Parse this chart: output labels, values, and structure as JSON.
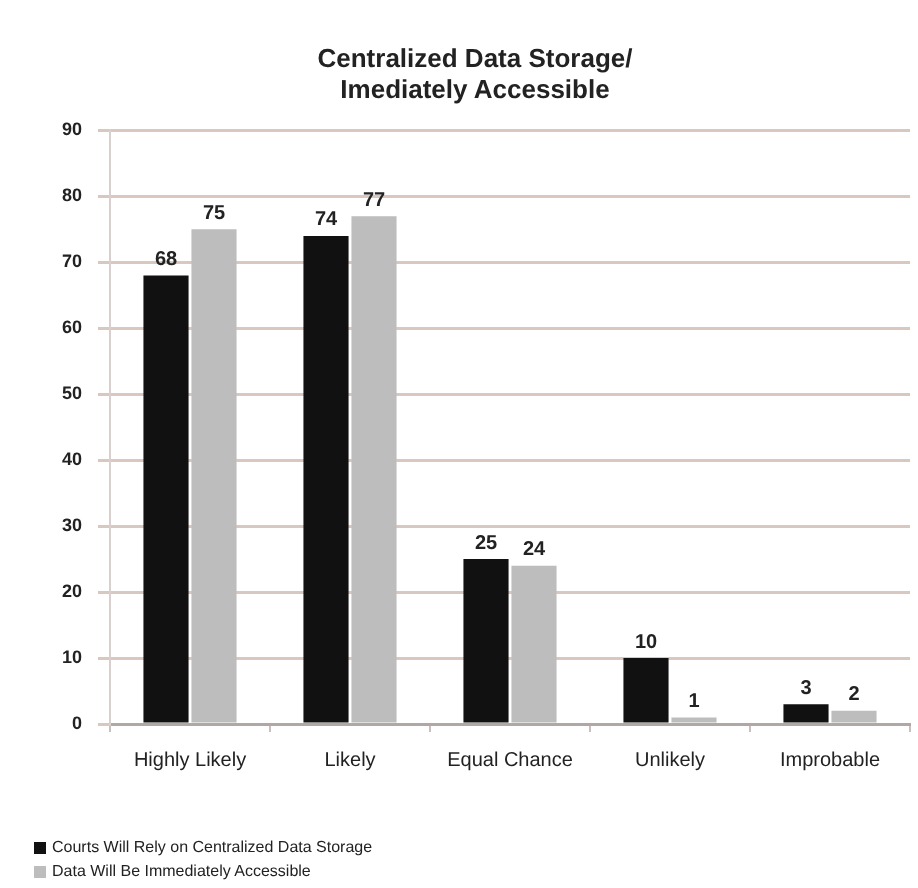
{
  "chart_data": {
    "type": "bar",
    "title": "Centralized Data Storage/ Imediately Accessible",
    "categories": [
      "Highly Likely",
      "Likely",
      "Equal Chance",
      "Unlikely",
      "Improbable"
    ],
    "series": [
      {
        "name": "Courts Will Rely on Centralized Data Storage",
        "color": "#111111",
        "values": [
          68,
          74,
          25,
          10,
          3
        ]
      },
      {
        "name": "Data Will Be Immediately Accessible",
        "color": "#bdbdbd",
        "values": [
          75,
          77,
          24,
          1,
          2
        ]
      }
    ],
    "ylim": [
      0,
      90
    ],
    "yticks": [
      0,
      10,
      20,
      30,
      40,
      50,
      60,
      70,
      80,
      90
    ],
    "grid": "y",
    "legend": "bottom left",
    "data_labels": true
  }
}
